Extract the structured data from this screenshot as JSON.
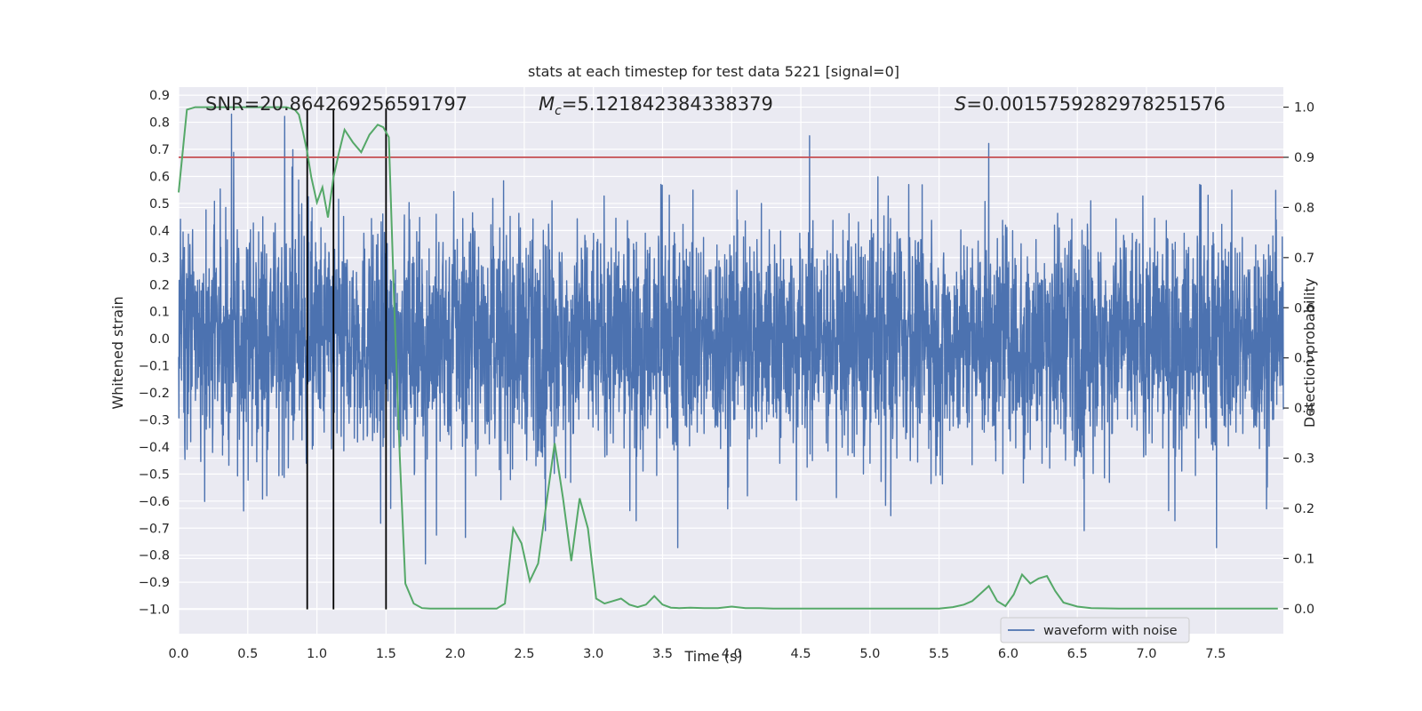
{
  "colors": {
    "axes_face": "#EAEAF2",
    "grid": "#FFFFFF",
    "waveform": "#4C72B0",
    "probability": "#55A868",
    "threshold": "#C44E52",
    "markers": "#000000"
  },
  "chart_data": {
    "type": "line",
    "title": "stats at each timestep for test data 5221 [signal=0]",
    "xlabel": "Time (s)",
    "ylabel_left": "Whitened strain",
    "ylabel_right": "Detection probability",
    "xlim": [
      0.0,
      7.99
    ],
    "ylim_left": [
      -1.09,
      0.93
    ],
    "ylim_right": [
      -0.05,
      1.04
    ],
    "xticks": [
      "0.0",
      "0.5",
      "1.0",
      "1.5",
      "2.0",
      "2.5",
      "3.0",
      "3.5",
      "4.0",
      "4.5",
      "5.0",
      "5.5",
      "6.0",
      "6.5",
      "7.0",
      "7.5"
    ],
    "yticks_left": [
      "−1.0",
      "−0.9",
      "−0.8",
      "−0.7",
      "−0.6",
      "−0.5",
      "−0.4",
      "−0.3",
      "−0.2",
      "−0.1",
      "0.0",
      "0.1",
      "0.2",
      "0.3",
      "0.4",
      "0.5",
      "0.6",
      "0.7",
      "0.8",
      "0.9"
    ],
    "yticks_right": [
      "0.0",
      "0.1",
      "0.2",
      "0.3",
      "0.4",
      "0.5",
      "0.6",
      "0.7",
      "0.8",
      "0.9",
      "1.0"
    ],
    "grid": true,
    "legend": {
      "location": "lower right",
      "entries": [
        "waveform with noise"
      ]
    },
    "annotations": {
      "snr": "SNR=20.864269256591797",
      "mc_symbol": "M",
      "mc_subscript": "c",
      "mc_value": "=5.121842384338379",
      "s_symbol": "S",
      "s_value": "=0.0015759282978251576"
    },
    "threshold_probability": 0.9,
    "vertical_markers_s": [
      0.93,
      1.12,
      1.5
    ],
    "marker_ymin": -1.0,
    "series": [
      {
        "name": "waveform with noise",
        "axis": "left",
        "description": "whitened strain noise sampled at high rate, amplitude envelope approx ±0.4 with peaks to 0.82 and -0.97"
      },
      {
        "axis": "right",
        "x": [
          0.0,
          0.06,
          0.12,
          0.18,
          0.24,
          0.3,
          0.36,
          0.42,
          0.48,
          0.54,
          0.6,
          0.66,
          0.72,
          0.78,
          0.84,
          0.87,
          0.9,
          0.93,
          0.96,
          1.0,
          1.04,
          1.08,
          1.12,
          1.16,
          1.2,
          1.26,
          1.32,
          1.38,
          1.44,
          1.48,
          1.52,
          1.56,
          1.6,
          1.64,
          1.7,
          1.76,
          1.82,
          1.9,
          2.0,
          2.1,
          2.2,
          2.3,
          2.36,
          2.42,
          2.48,
          2.54,
          2.6,
          2.66,
          2.72,
          2.78,
          2.84,
          2.9,
          2.96,
          3.02,
          3.08,
          3.14,
          3.2,
          3.26,
          3.32,
          3.38,
          3.44,
          3.5,
          3.56,
          3.62,
          3.7,
          3.8,
          3.9,
          4.0,
          4.1,
          4.2,
          4.3,
          4.5,
          4.7,
          4.9,
          5.1,
          5.3,
          5.5,
          5.6,
          5.68,
          5.74,
          5.8,
          5.86,
          5.92,
          5.98,
          6.04,
          6.1,
          6.16,
          6.22,
          6.28,
          6.34,
          6.4,
          6.5,
          6.6,
          6.8,
          7.0,
          7.2,
          7.4,
          7.6,
          7.8,
          7.95
        ],
        "y": [
          0.83,
          0.995,
          1.0,
          1.0,
          1.0,
          1.0,
          1.0,
          1.0,
          1.0,
          1.0,
          1.0,
          1.0,
          1.0,
          1.0,
          0.995,
          0.985,
          0.95,
          0.91,
          0.86,
          0.81,
          0.84,
          0.78,
          0.86,
          0.91,
          0.955,
          0.93,
          0.91,
          0.945,
          0.965,
          0.96,
          0.94,
          0.6,
          0.3,
          0.05,
          0.01,
          0.001,
          0.0,
          0.0,
          0.0,
          0.0,
          0.0,
          0.0,
          0.01,
          0.16,
          0.13,
          0.055,
          0.09,
          0.21,
          0.33,
          0.22,
          0.095,
          0.22,
          0.16,
          0.02,
          0.01,
          0.015,
          0.02,
          0.008,
          0.003,
          0.008,
          0.025,
          0.008,
          0.002,
          0.001,
          0.002,
          0.001,
          0.001,
          0.004,
          0.001,
          0.001,
          0.0,
          0.0,
          0.0,
          0.0,
          0.0,
          0.0,
          0.0,
          0.003,
          0.008,
          0.015,
          0.03,
          0.045,
          0.015,
          0.005,
          0.028,
          0.068,
          0.05,
          0.06,
          0.065,
          0.035,
          0.012,
          0.004,
          0.001,
          0.0,
          0.0,
          0.0,
          0.0,
          0.0,
          0.0,
          0.0
        ]
      }
    ]
  }
}
